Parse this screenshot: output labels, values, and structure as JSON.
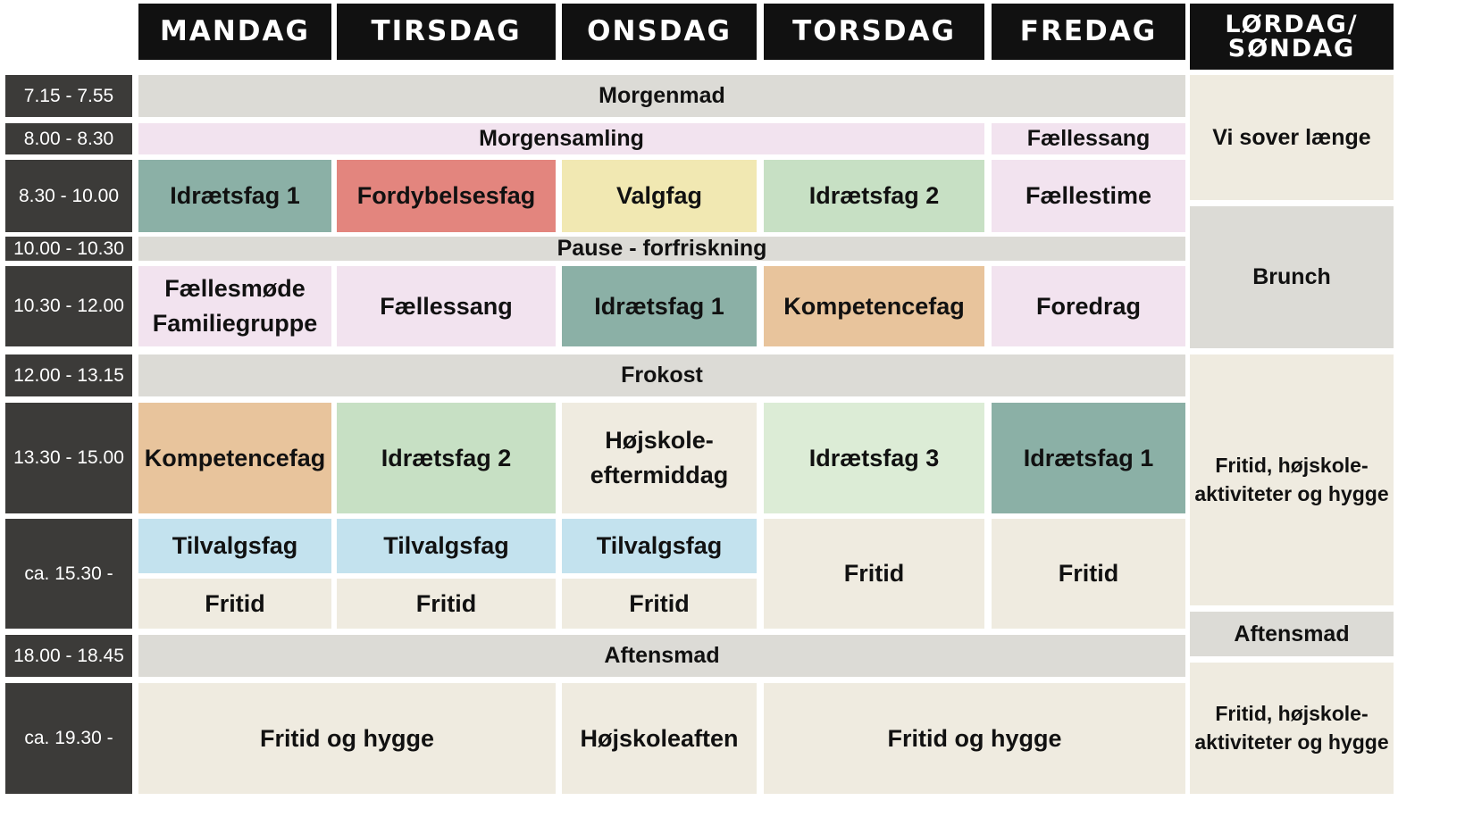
{
  "colors": {
    "header": "#111111",
    "time": "#3c3b39",
    "grey": "#dcdbd6",
    "cream": "#efebe0",
    "pink": "#f2e3ef",
    "teal": "#8bb0a6",
    "red": "#e3857e",
    "yellow": "#f1e8b2",
    "green": "#c7e0c4",
    "lightgreen": "#dcecd6",
    "orange": "#e8c49c",
    "blue": "#c3e2ee"
  },
  "days": {
    "mon": "MANDAG",
    "tue": "TIRSDAG",
    "wed": "ONSDAG",
    "thu": "TORSDAG",
    "fri": "FREDAG",
    "weekend": "LØRDAG/\nSØNDAG"
  },
  "times": {
    "t1": "7.15 - 7.55",
    "t2": "8.00 - 8.30",
    "t3": "8.30 - 10.00",
    "t4": "10.00 - 10.30",
    "t5": "10.30 - 12.00",
    "t6": "12.00 - 13.15",
    "t7": "13.30 - 15.00",
    "t8": "ca. 15.30 -",
    "t9": "18.00 - 18.45",
    "t10": "ca. 19.30 -"
  },
  "schedule": {
    "morgenmad": "Morgenmad",
    "morgensamling": "Morgensamling",
    "fri_faellessang": "Fællessang",
    "r3_mon": "Idrætsfag 1",
    "r3_tue": "Fordybelsesfag",
    "r3_wed": "Valgfag",
    "r3_thu": "Idrætsfag 2",
    "r3_fri": "Fællestime",
    "pause": "Pause - forfriskning",
    "r5_mon": "Fællesmøde\nFamiliegruppe",
    "r5_tue": "Fællessang",
    "r5_wed": "Idrætsfag 1",
    "r5_thu": "Kompetencefag",
    "r5_fri": "Foredrag",
    "frokost": "Frokost",
    "r7_mon": "Kompetencefag",
    "r7_tue": "Idrætsfag 2",
    "r7_wed": "Højskole-\neftermiddag",
    "r7_thu": "Idrætsfag 3",
    "r7_fri": "Idrætsfag 1",
    "r8_mon_top": "Tilvalgsfag",
    "r8_tue_top": "Tilvalgsfag",
    "r8_wed_top": "Tilvalgsfag",
    "r8_mon_bot": "Fritid",
    "r8_tue_bot": "Fritid",
    "r8_wed_bot": "Fritid",
    "r8_thu": "Fritid",
    "r8_fri": "Fritid",
    "aftensmad": "Aftensmad",
    "r10_montue": "Fritid og hygge",
    "r10_wed": "Højskoleaften",
    "r10_thufri": "Fritid og hygge"
  },
  "weekend": {
    "sleep": "Vi sover længe",
    "brunch": "Brunch",
    "afternoon": "Fritid, højskole-\naktiviteter og hygge",
    "dinner": "Aftensmad",
    "evening": "Fritid, højskole-\naktiviteter og hygge"
  }
}
